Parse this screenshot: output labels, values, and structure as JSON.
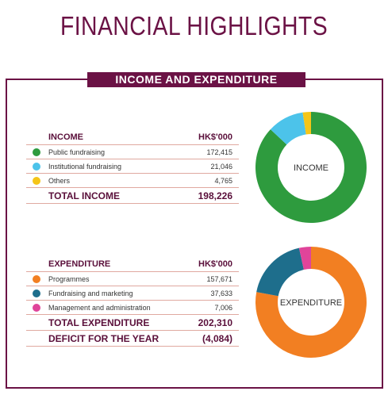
{
  "page": {
    "title": "FINANCIAL HIGHLIGHTS",
    "section": "INCOME AND EXPENDITURE"
  },
  "income_table": {
    "header": "INCOME",
    "unit": "HK$'000",
    "rows": [
      {
        "label": "Public fundraising",
        "value": "172,415",
        "color": "#2e9b3e"
      },
      {
        "label": "Institutional fundraising",
        "value": "21,046",
        "color": "#4cc3ea"
      },
      {
        "label": "Others",
        "value": "4,765",
        "color": "#f5c518"
      }
    ],
    "total_label": "TOTAL INCOME",
    "total_value": "198,226"
  },
  "expenditure_table": {
    "header": "EXPENDITURE",
    "unit": "HK$'000",
    "rows": [
      {
        "label": "Programmes",
        "value": "157,671",
        "color": "#f27f22"
      },
      {
        "label": "Fundraising and marketing",
        "value": "37,633",
        "color": "#1e6e8c"
      },
      {
        "label": "Management and administration",
        "value": "7,006",
        "color": "#e0449a"
      }
    ],
    "total_label": "TOTAL EXPENDITURE",
    "total_value": "202,310",
    "deficit_label": "DEFICIT FOR THE YEAR",
    "deficit_value": "(4,084)"
  },
  "chart_data": [
    {
      "type": "pie",
      "title": "INCOME",
      "categories": [
        "Public fundraising",
        "Institutional fundraising",
        "Others"
      ],
      "values": [
        172415,
        21046,
        4765
      ],
      "colors": [
        "#2e9b3e",
        "#4cc3ea",
        "#f5c518"
      ],
      "unit": "HK$'000",
      "legend": "left"
    },
    {
      "type": "pie",
      "title": "EXPENDITURE",
      "categories": [
        "Programmes",
        "Fundraising and marketing",
        "Management and administration"
      ],
      "values": [
        157671,
        37633,
        7006
      ],
      "colors": [
        "#f27f22",
        "#1e6e8c",
        "#e0449a"
      ],
      "unit": "HK$'000",
      "legend": "left"
    }
  ]
}
